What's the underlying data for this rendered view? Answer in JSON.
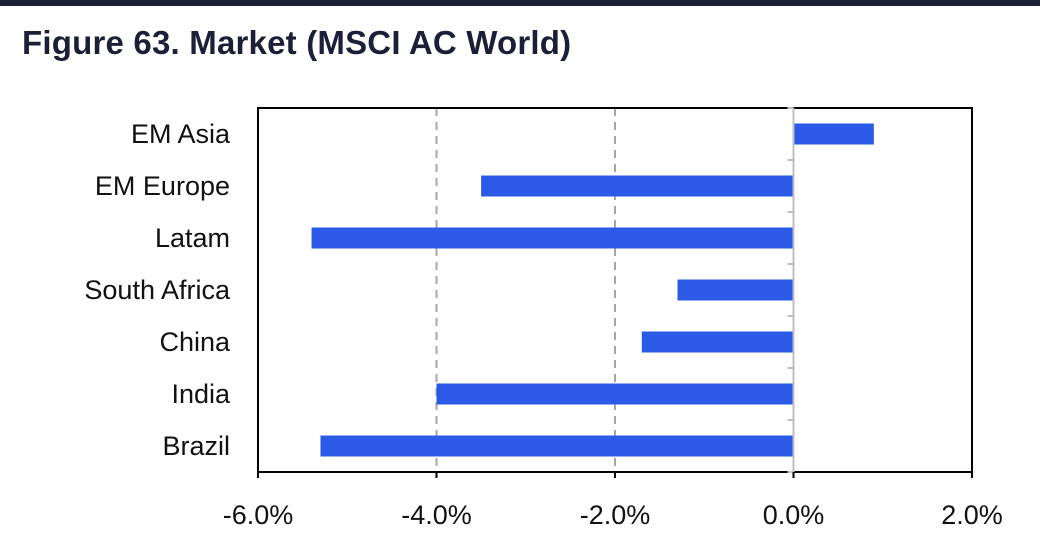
{
  "title": "Figure 63. Market (MSCI AC World)",
  "chart_data": {
    "type": "bar",
    "orientation": "horizontal",
    "categories": [
      "EM Asia",
      "EM Europe",
      "Latam",
      "South Africa",
      "China",
      "India",
      "Brazil"
    ],
    "values": [
      0.9,
      -3.5,
      -5.4,
      -1.3,
      -1.7,
      -4.0,
      -5.3
    ],
    "xlim": [
      -6.0,
      2.0
    ],
    "xticks": [
      -6.0,
      -4.0,
      -2.0,
      0.0,
      2.0
    ],
    "xtick_labels": [
      "-6.0%",
      "-4.0%",
      "-2.0%",
      "0.0%",
      "2.0%"
    ],
    "grid": "vertical dashed at -4.0% and -2.0%",
    "bar_color": "#2a5ae6",
    "legend": "none"
  }
}
